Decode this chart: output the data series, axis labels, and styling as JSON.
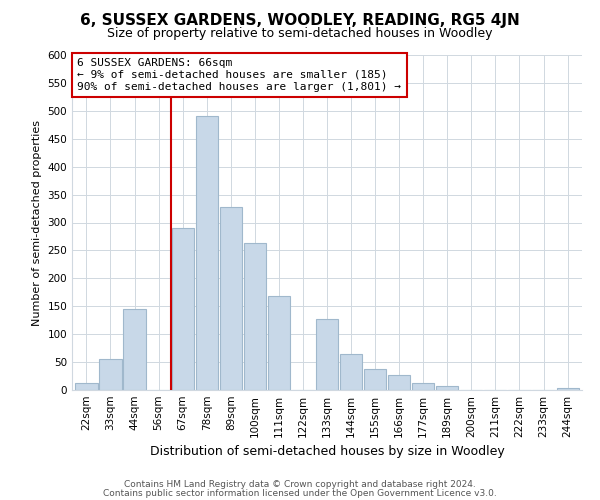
{
  "title": "6, SUSSEX GARDENS, WOODLEY, READING, RG5 4JN",
  "subtitle": "Size of property relative to semi-detached houses in Woodley",
  "xlabel": "Distribution of semi-detached houses by size in Woodley",
  "ylabel": "Number of semi-detached properties",
  "footer_line1": "Contains HM Land Registry data © Crown copyright and database right 2024.",
  "footer_line2": "Contains public sector information licensed under the Open Government Licence v3.0.",
  "bar_labels": [
    "22sqm",
    "33sqm",
    "44sqm",
    "56sqm",
    "67sqm",
    "78sqm",
    "89sqm",
    "100sqm",
    "111sqm",
    "122sqm",
    "133sqm",
    "144sqm",
    "155sqm",
    "166sqm",
    "177sqm",
    "189sqm",
    "200sqm",
    "211sqm",
    "222sqm",
    "233sqm",
    "244sqm"
  ],
  "bar_values": [
    12,
    55,
    145,
    0,
    290,
    490,
    328,
    263,
    168,
    0,
    128,
    65,
    38,
    27,
    12,
    8,
    0,
    0,
    0,
    0,
    3
  ],
  "bar_color": "#c8d8e8",
  "bar_edge_color": "#a0b8cc",
  "property_line_index": 4,
  "annotation_title": "6 SUSSEX GARDENS: 66sqm",
  "annotation_line1": "← 9% of semi-detached houses are smaller (185)",
  "annotation_line2": "90% of semi-detached houses are larger (1,801) →",
  "annotation_box_color": "#ffffff",
  "annotation_box_edge": "#cc0000",
  "line_color": "#cc0000",
  "ylim": [
    0,
    600
  ],
  "yticks": [
    0,
    50,
    100,
    150,
    200,
    250,
    300,
    350,
    400,
    450,
    500,
    550,
    600
  ],
  "grid_color": "#d0d8e0",
  "background_color": "#ffffff",
  "title_fontsize": 11,
  "subtitle_fontsize": 9
}
